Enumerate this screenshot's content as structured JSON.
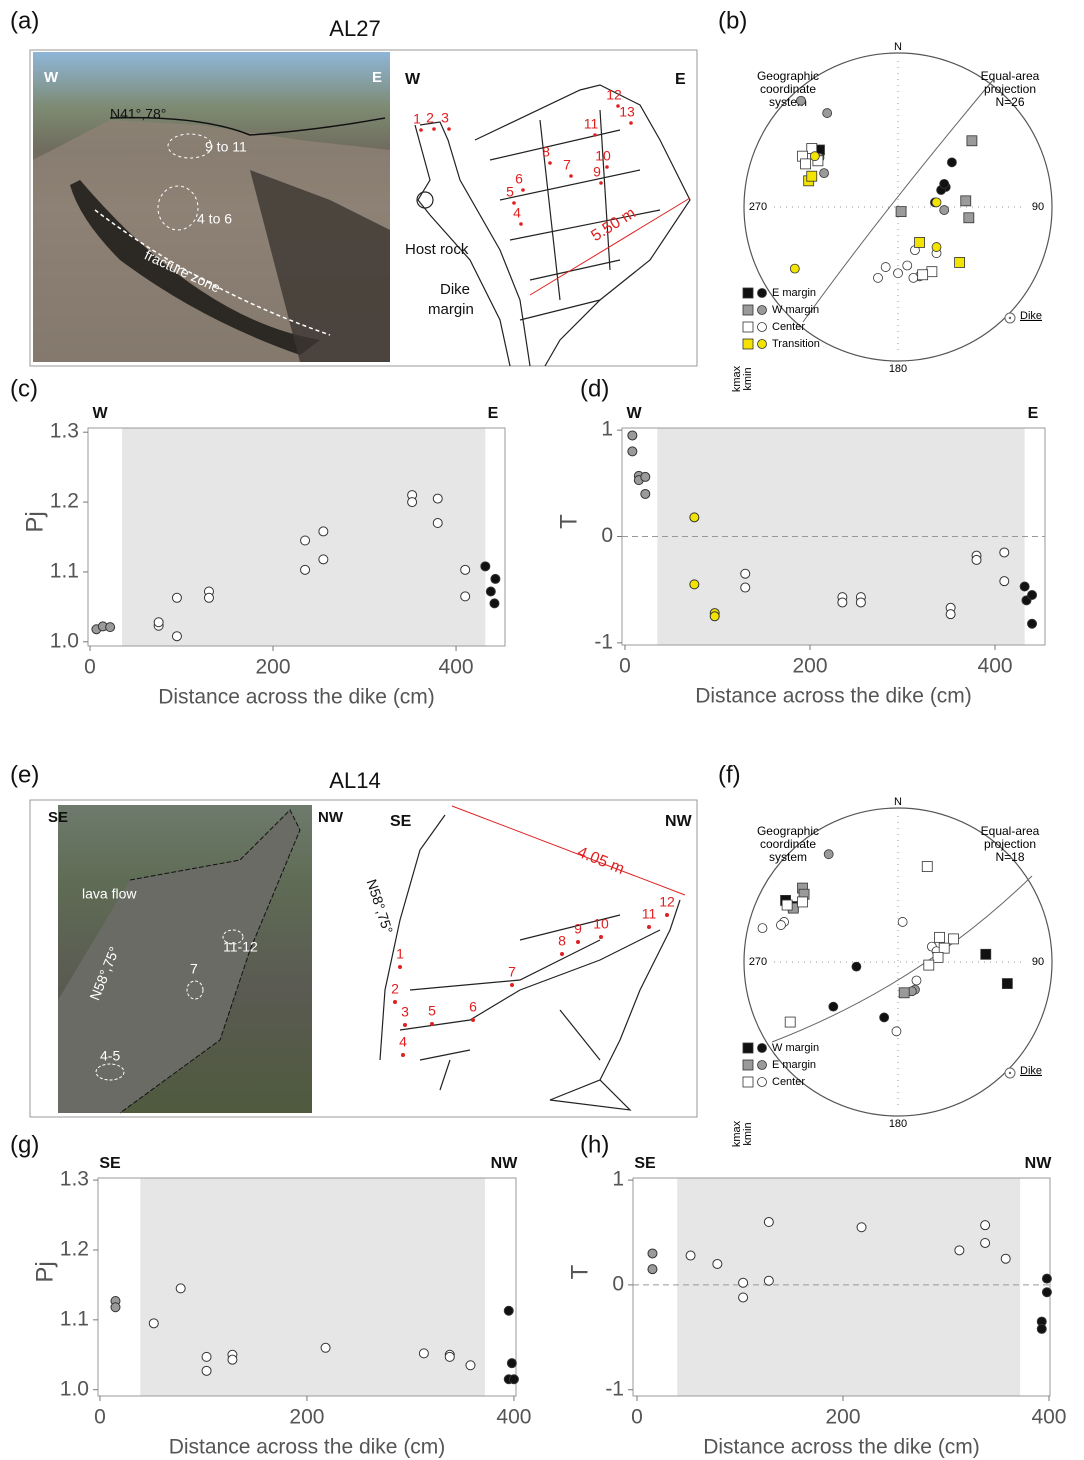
{
  "figure": {
    "panel_labels": [
      "(a)",
      "(b)",
      "(c)",
      "(d)",
      "(e)",
      "(f)",
      "(g)",
      "(h)"
    ],
    "al27": {
      "title": "AL27",
      "photo": {
        "w": "W",
        "e": "E",
        "strike": "N41°,78°",
        "labels": [
          "9 to 11",
          "4 to 6",
          "fracture zone"
        ]
      },
      "sketch": {
        "w": "W",
        "e": "E",
        "sites": [
          "1",
          "2",
          "3",
          "4",
          "5",
          "6",
          "7",
          "8",
          "9",
          "10",
          "11",
          "12",
          "13"
        ],
        "host_rock": "Host rock",
        "dike_margin": [
          "Dike",
          "margin"
        ],
        "width": "5.50 m"
      }
    },
    "al14": {
      "title": "AL14",
      "photo": {
        "se": "SE",
        "nw": "NW",
        "lava": "lava flow",
        "strike": "N58°,75°",
        "labels": [
          "11-12",
          "7",
          "4-5"
        ]
      },
      "sketch": {
        "se": "SE",
        "nw": "NW",
        "sites": [
          "1",
          "2",
          "3",
          "4",
          "5",
          "6",
          "7",
          "8",
          "9",
          "10",
          "11",
          "12"
        ],
        "width": "4.05 m",
        "strike": "N58°,75°"
      }
    }
  },
  "chart_data": [
    {
      "type": "stereonet",
      "north": "N",
      "east": "90",
      "south": "180",
      "west": "270",
      "left_note": [
        "Geographic",
        "coordinate",
        "system"
      ],
      "right_note": [
        "Equal-area",
        "projection",
        "N=26"
      ],
      "kmax_label": "kmax",
      "kmin_label": "kmin",
      "dike_label": "Dike",
      "xlim": [
        -1,
        1
      ],
      "ylim": [
        -1,
        1
      ],
      "series": [
        {
          "name": "E margin",
          "color": "#111111",
          "kmax": {
            "x": [
              -0.51
            ],
            "values": [
              0.37
            ]
          },
          "kmin": {
            "x": [
              0.35,
              0.31,
              0.28,
              0.3,
              0.24
            ],
            "values": [
              0.29,
              0.13,
              0.11,
              0.15,
              0.03
            ]
          }
        },
        {
          "name": "W margin",
          "color": "#9a9a9a",
          "kmax": {
            "x": [
              0.48,
              0.02,
              0.44,
              0.46
            ],
            "values": [
              0.43,
              -0.03,
              0.04,
              -0.07
            ]
          },
          "kmin": {
            "x": [
              -0.46,
              -0.63,
              -0.51,
              -0.48,
              0.3
            ],
            "values": [
              0.61,
              0.69,
              0.32,
              0.22,
              -0.02
            ]
          }
        },
        {
          "name": "Center",
          "color": "#ffffff",
          "kmax": {
            "x": [
              -0.56,
              -0.62,
              -0.52,
              -0.6,
              0.22,
              0.16
            ],
            "values": [
              0.38,
              0.33,
              0.3,
              0.28,
              -0.42,
              -0.44
            ]
          },
          "kmin": {
            "x": [
              0.11,
              0.06,
              0.14,
              0.1,
              -0.13,
              -0.08,
              0.0,
              0.25
            ],
            "values": [
              -0.28,
              -0.38,
              -0.45,
              -0.46,
              -0.46,
              -0.39,
              -0.43,
              -0.3
            ]
          }
        },
        {
          "name": "Transition",
          "color": "#f2e400",
          "kmax": {
            "x": [
              -0.58,
              -0.56,
              0.14,
              0.4
            ],
            "values": [
              0.17,
              0.2,
              -0.23,
              -0.36
            ]
          },
          "kmin": {
            "x": [
              0.25,
              -0.54,
              0.25,
              -0.67
            ],
            "values": [
              0.03,
              0.33,
              -0.26,
              -0.4
            ]
          }
        }
      ]
    },
    {
      "type": "scatter",
      "xlabel": "Distance across the dike (cm)",
      "ylabel": "Pj",
      "left_label": "W",
      "right_label": "E",
      "xlim": [
        -2.2,
        453.5
      ],
      "ylim": [
        0.994,
        1.306
      ],
      "xticks": [
        0,
        200,
        400
      ],
      "yticks": [
        {
          "value": 1,
          "label": "1.0"
        },
        1.1,
        1.2,
        1.3
      ],
      "shaded": [
        35,
        432
      ],
      "series": [
        {
          "color": "#9a9a9a",
          "x": [
            7,
            14,
            22
          ],
          "values": [
            1.018,
            1.022,
            1.021
          ]
        },
        {
          "color": "#ffffff",
          "x": [
            75,
            75,
            95,
            95,
            130,
            130,
            235,
            235,
            255,
            255,
            352,
            352,
            380,
            380,
            410,
            410
          ],
          "values": [
            1.023,
            1.028,
            1.063,
            1.008,
            1.072,
            1.063,
            1.145,
            1.103,
            1.158,
            1.118,
            1.21,
            1.2,
            1.205,
            1.17,
            1.103,
            1.065
          ]
        },
        {
          "color": "#111111",
          "x": [
            432,
            438,
            443,
            442
          ],
          "values": [
            1.108,
            1.072,
            1.09,
            1.055
          ]
        }
      ]
    },
    {
      "type": "scatter",
      "xlabel": "Distance across the dike (cm)",
      "ylabel": "T",
      "left_label": "W",
      "right_label": "E",
      "xlim": [
        -3.2,
        454
      ],
      "ylim": [
        -1.02,
        1.02
      ],
      "xticks": [
        0,
        200,
        400
      ],
      "yticks": [
        -1,
        0,
        1
      ],
      "shaded": [
        35,
        432
      ],
      "reference_line": 0,
      "series": [
        {
          "color": "#9a9a9a",
          "x": [
            8,
            8,
            15,
            15,
            22,
            22
          ],
          "values": [
            0.95,
            0.8,
            0.57,
            0.53,
            0.56,
            0.4
          ]
        },
        {
          "color": "#f2e400",
          "x": [
            75,
            75,
            97,
            97
          ],
          "values": [
            0.18,
            -0.45,
            -0.72,
            -0.75
          ]
        },
        {
          "color": "#ffffff",
          "x": [
            130,
            130,
            235,
            235,
            255,
            255,
            352,
            352,
            380,
            380,
            410,
            410
          ],
          "values": [
            -0.35,
            -0.48,
            -0.57,
            -0.62,
            -0.57,
            -0.62,
            -0.67,
            -0.73,
            -0.18,
            -0.22,
            -0.15,
            -0.42
          ]
        },
        {
          "color": "#111111",
          "x": [
            432,
            434,
            440,
            440
          ],
          "values": [
            -0.47,
            -0.6,
            -0.55,
            -0.82
          ]
        }
      ]
    },
    {
      "type": "stereonet",
      "north": "N",
      "east": "90",
      "south": "180",
      "west": "270",
      "left_note": [
        "Geographic",
        "coordinate",
        "system"
      ],
      "right_note": [
        "Equal-area",
        "projection",
        "N=18"
      ],
      "kmax_label": "kmax",
      "kmin_label": "kmin",
      "dike_label": "Dike",
      "xlim": [
        -1,
        1
      ],
      "ylim": [
        -1,
        1
      ],
      "series": [
        {
          "name": "W margin",
          "color": "#111111",
          "kmax": {
            "x": [
              -0.73,
              -0.68,
              0.57,
              0.71
            ],
            "values": [
              0.4,
              0.36,
              0.05,
              -0.14
            ]
          },
          "kmin": {
            "x": [
              -0.27,
              -0.42,
              -0.09
            ],
            "values": [
              -0.03,
              -0.29,
              -0.36
            ]
          }
        },
        {
          "name": "E margin",
          "color": "#9a9a9a",
          "kmax": {
            "x": [
              -0.62,
              -0.61,
              -0.68,
              0.04
            ],
            "values": [
              0.48,
              0.44,
              0.35,
              -0.2
            ]
          },
          "kmin": {
            "x": [
              -0.45,
              0.11,
              0.09
            ],
            "values": [
              0.7,
              -0.18,
              -0.19
            ]
          }
        },
        {
          "name": "Center",
          "color": "#ffffff",
          "kmax": {
            "x": [
              -0.72,
              -0.62,
              0.19,
              0.27,
              0.36,
              0.3,
              0.26,
              0.2,
              -0.7
            ],
            "values": [
              0.37,
              0.39,
              0.62,
              0.16,
              0.15,
              0.09,
              0.03,
              -0.02,
              -0.39
            ]
          },
          "kmin": {
            "x": [
              0.03,
              0.22,
              0.25,
              0.12,
              -0.88,
              -0.74,
              -0.76,
              -0.01
            ],
            "values": [
              0.26,
              0.1,
              0.07,
              -0.12,
              0.22,
              0.26,
              0.24,
              -0.45
            ]
          }
        }
      ]
    },
    {
      "type": "scatter",
      "xlabel": "Distance across the dike (cm)",
      "ylabel": "Pj",
      "left_label": "SE",
      "right_label": "NW",
      "xlim": [
        -1.9,
        402
      ],
      "ylim": [
        0.991,
        1.303
      ],
      "xticks": [
        0,
        200,
        400
      ],
      "yticks": [
        {
          "value": 1,
          "label": "1.0"
        },
        1.1,
        1.2,
        1.3
      ],
      "shaded": [
        39,
        372
      ],
      "series": [
        {
          "color": "#9a9a9a",
          "x": [
            15,
            15
          ],
          "values": [
            1.127,
            1.118
          ]
        },
        {
          "color": "#ffffff",
          "x": [
            52,
            78,
            103,
            103,
            128,
            128,
            218,
            313,
            338,
            338,
            358
          ],
          "values": [
            1.095,
            1.145,
            1.047,
            1.027,
            1.05,
            1.043,
            1.06,
            1.052,
            1.05,
            1.047,
            1.035
          ]
        },
        {
          "color": "#111111",
          "x": [
            395,
            398,
            395,
            400
          ],
          "values": [
            1.113,
            1.038,
            1.015,
            1.015
          ]
        }
      ]
    },
    {
      "type": "scatter",
      "xlabel": "Distance across the dike (cm)",
      "ylabel": "T",
      "left_label": "SE",
      "right_label": "NW",
      "xlim": [
        -3.9,
        401
      ],
      "ylim": [
        -1.06,
        1.02
      ],
      "xticks": [
        0,
        200,
        400
      ],
      "yticks": [
        -1,
        0,
        1
      ],
      "shaded": [
        39,
        372
      ],
      "reference_line": 0,
      "series": [
        {
          "color": "#9a9a9a",
          "x": [
            15,
            15
          ],
          "values": [
            0.3,
            0.15
          ]
        },
        {
          "color": "#ffffff",
          "x": [
            52,
            78,
            103,
            103,
            128,
            128,
            218,
            313,
            338,
            338,
            358
          ],
          "values": [
            0.28,
            0.2,
            0.02,
            -0.12,
            0.6,
            0.04,
            0.55,
            0.33,
            0.57,
            0.4,
            0.25
          ]
        },
        {
          "color": "#111111",
          "x": [
            398,
            398,
            393,
            393
          ],
          "values": [
            0.06,
            -0.07,
            -0.35,
            -0.42
          ]
        }
      ]
    }
  ]
}
